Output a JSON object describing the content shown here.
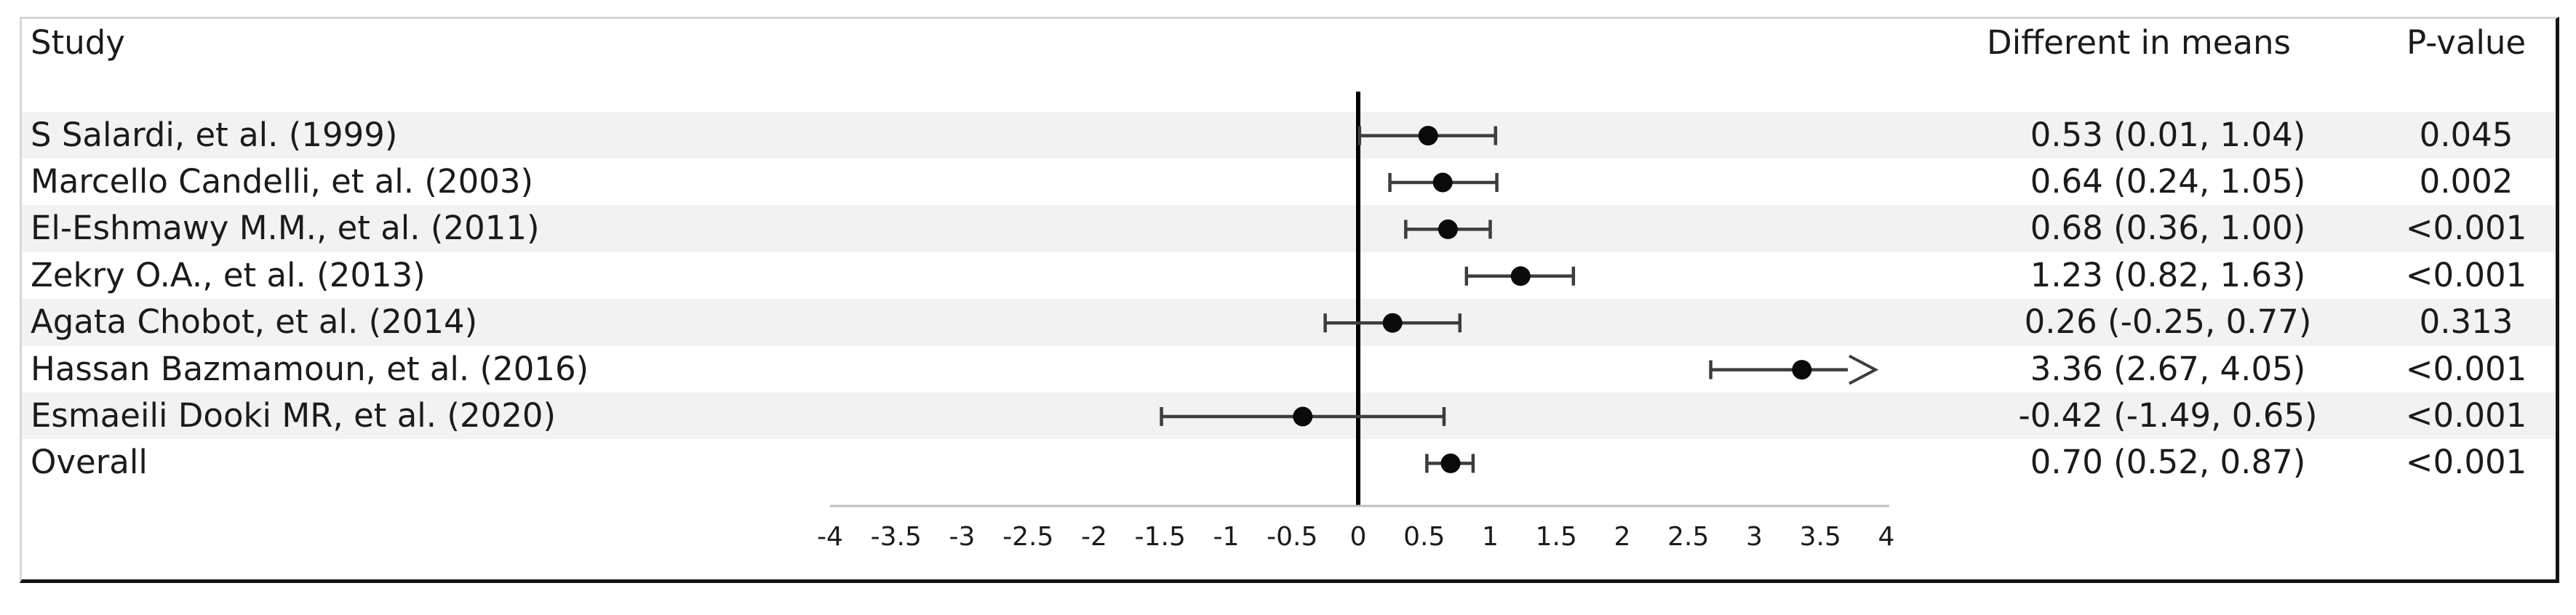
{
  "chart_data": {
    "type": "forest",
    "title": "",
    "columns": {
      "study": "Study",
      "effect": "Different in means",
      "p": "P-value"
    },
    "axis": {
      "min": -4,
      "max": 4,
      "step": 0.5,
      "tick_labels": [
        "-4",
        "-3.5",
        "-3",
        "-2.5",
        "-2",
        "-1.5",
        "-1",
        "-0.5",
        "0",
        "0.5",
        "1",
        "1.5",
        "2",
        "2.5",
        "3",
        "3.5",
        "4"
      ],
      "zero_reference_line": 0
    },
    "rows": [
      {
        "study": "S Salardi, et al. (1999)",
        "mean": 0.53,
        "ci_low": 0.01,
        "ci_high": 1.04,
        "effect_label": "0.53 (0.01, 1.04)",
        "p_value": "0.045",
        "ci_exceeds_axis": false
      },
      {
        "study": "Marcello Candelli, et al. (2003)",
        "mean": 0.64,
        "ci_low": 0.24,
        "ci_high": 1.05,
        "effect_label": "0.64 (0.24, 1.05)",
        "p_value": "0.002",
        "ci_exceeds_axis": false
      },
      {
        "study": "El-Eshmawy M.M., et al. (2011)",
        "mean": 0.68,
        "ci_low": 0.36,
        "ci_high": 1.0,
        "effect_label": "0.68 (0.36, 1.00)",
        "p_value": "<0.001",
        "ci_exceeds_axis": false
      },
      {
        "study": "Zekry O.A., et al. (2013)",
        "mean": 1.23,
        "ci_low": 0.82,
        "ci_high": 1.63,
        "effect_label": "1.23 (0.82, 1.63)",
        "p_value": "<0.001",
        "ci_exceeds_axis": false
      },
      {
        "study": "Agata Chobot, et al. (2014)",
        "mean": 0.26,
        "ci_low": -0.25,
        "ci_high": 0.77,
        "effect_label": "0.26 (-0.25, 0.77)",
        "p_value": "0.313",
        "ci_exceeds_axis": false
      },
      {
        "study": "Hassan Bazmamoun, et al. (2016)",
        "mean": 3.36,
        "ci_low": 2.67,
        "ci_high": 4.05,
        "effect_label": "3.36 (2.67, 4.05)",
        "p_value": "<0.001",
        "ci_exceeds_axis": true
      },
      {
        "study": "Esmaeili Dooki MR, et al. (2020)",
        "mean": -0.42,
        "ci_low": -1.49,
        "ci_high": 0.65,
        "effect_label": "-0.42 (-1.49, 0.65)",
        "p_value": "<0.001",
        "ci_exceeds_axis": false
      },
      {
        "study": "Overall",
        "mean": 0.7,
        "ci_low": 0.52,
        "ci_high": 0.87,
        "effect_label": "0.70 (0.52, 0.87)",
        "p_value": "<0.001",
        "ci_exceeds_axis": false
      }
    ],
    "colors": {
      "row_band": "#f2f2f2",
      "marker": "#0a0a0a",
      "whisker": "#3d3d3d",
      "zero_line": "#000000",
      "axis_line": "#bfbfbf",
      "text": "#1b1b1b",
      "border_light": "#d6d6d6",
      "border_dark": "#141414"
    }
  }
}
